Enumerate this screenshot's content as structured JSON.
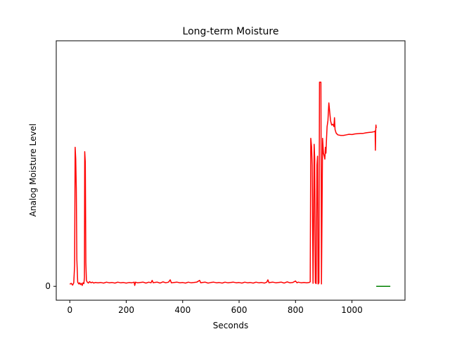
{
  "chart_data": {
    "type": "line",
    "title": "Long-term Moisture",
    "xlabel": "Seconds",
    "ylabel": "Analog Moisture Level",
    "xlim": [
      -48,
      1188
    ],
    "ylim": [
      -47,
      830
    ],
    "x_ticks": [
      0,
      200,
      400,
      600,
      800,
      1000
    ],
    "y_ticks": [
      0
    ],
    "grid": false,
    "legend": "none",
    "series": [
      {
        "color": "#ff0000",
        "points": [
          [
            0,
            7
          ],
          [
            5,
            10
          ],
          [
            10,
            4
          ],
          [
            14,
            12
          ],
          [
            17,
            70
          ],
          [
            19,
            470
          ],
          [
            21,
            430
          ],
          [
            23,
            330
          ],
          [
            25,
            90
          ],
          [
            28,
            14
          ],
          [
            32,
            8
          ],
          [
            35,
            12
          ],
          [
            38,
            6
          ],
          [
            41,
            10
          ],
          [
            44,
            3
          ],
          [
            47,
            12
          ],
          [
            50,
            9
          ],
          [
            52,
            30
          ],
          [
            53,
            455
          ],
          [
            55,
            420
          ],
          [
            57,
            80
          ],
          [
            59,
            20
          ],
          [
            62,
            14
          ],
          [
            66,
            11
          ],
          [
            70,
            16
          ],
          [
            75,
            12
          ],
          [
            80,
            14
          ],
          [
            85,
            11
          ],
          [
            90,
            13
          ],
          [
            100,
            12
          ],
          [
            110,
            13
          ],
          [
            120,
            11
          ],
          [
            130,
            14
          ],
          [
            140,
            12
          ],
          [
            150,
            13
          ],
          [
            160,
            11
          ],
          [
            170,
            14
          ],
          [
            180,
            12
          ],
          [
            190,
            13
          ],
          [
            200,
            11
          ],
          [
            210,
            13
          ],
          [
            220,
            12
          ],
          [
            228,
            14
          ],
          [
            230,
            3
          ],
          [
            233,
            14
          ],
          [
            240,
            12
          ],
          [
            250,
            13
          ],
          [
            260,
            14
          ],
          [
            270,
            11
          ],
          [
            280,
            14
          ],
          [
            288,
            12
          ],
          [
            292,
            20
          ],
          [
            296,
            12
          ],
          [
            300,
            13
          ],
          [
            310,
            14
          ],
          [
            320,
            11
          ],
          [
            330,
            15
          ],
          [
            340,
            12
          ],
          [
            350,
            14
          ],
          [
            356,
            22
          ],
          [
            360,
            12
          ],
          [
            370,
            13
          ],
          [
            380,
            14
          ],
          [
            390,
            12
          ],
          [
            400,
            13
          ],
          [
            410,
            11
          ],
          [
            420,
            14
          ],
          [
            430,
            12
          ],
          [
            440,
            13
          ],
          [
            450,
            14
          ],
          [
            460,
            20
          ],
          [
            464,
            12
          ],
          [
            470,
            13
          ],
          [
            480,
            14
          ],
          [
            490,
            11
          ],
          [
            500,
            13
          ],
          [
            510,
            14
          ],
          [
            520,
            12
          ],
          [
            530,
            13
          ],
          [
            540,
            11
          ],
          [
            550,
            14
          ],
          [
            560,
            12
          ],
          [
            570,
            13
          ],
          [
            580,
            14
          ],
          [
            590,
            12
          ],
          [
            600,
            13
          ],
          [
            610,
            11
          ],
          [
            620,
            14
          ],
          [
            630,
            12
          ],
          [
            640,
            13
          ],
          [
            650,
            11
          ],
          [
            660,
            14
          ],
          [
            670,
            12
          ],
          [
            680,
            13
          ],
          [
            690,
            11
          ],
          [
            698,
            14
          ],
          [
            702,
            22
          ],
          [
            706,
            12
          ],
          [
            710,
            13
          ],
          [
            720,
            14
          ],
          [
            730,
            12
          ],
          [
            740,
            13
          ],
          [
            750,
            14
          ],
          [
            760,
            11
          ],
          [
            770,
            15
          ],
          [
            780,
            12
          ],
          [
            790,
            13
          ],
          [
            800,
            18
          ],
          [
            805,
            12
          ],
          [
            810,
            14
          ],
          [
            820,
            12
          ],
          [
            830,
            13
          ],
          [
            840,
            12
          ],
          [
            848,
            13
          ],
          [
            852,
            15
          ],
          [
            854,
            500
          ],
          [
            857,
            470
          ],
          [
            859,
            410
          ],
          [
            862,
            10
          ],
          [
            864,
            200
          ],
          [
            866,
            480
          ],
          [
            868,
            430
          ],
          [
            870,
            12
          ],
          [
            873,
            9
          ],
          [
            876,
            410
          ],
          [
            878,
            440
          ],
          [
            880,
            8
          ],
          [
            883,
            12
          ],
          [
            885,
            690
          ],
          [
            888,
            690
          ],
          [
            890,
            690
          ],
          [
            892,
            8
          ],
          [
            896,
            500
          ],
          [
            899,
            450
          ],
          [
            902,
            440
          ],
          [
            904,
            430
          ],
          [
            906,
            470
          ],
          [
            908,
            450
          ],
          [
            910,
            500
          ],
          [
            912,
            540
          ],
          [
            915,
            560
          ],
          [
            918,
            620
          ],
          [
            920,
            600
          ],
          [
            924,
            560
          ],
          [
            928,
            545
          ],
          [
            932,
            548
          ],
          [
            936,
            540
          ],
          [
            938,
            570
          ],
          [
            940,
            530
          ],
          [
            944,
            518
          ],
          [
            950,
            512
          ],
          [
            960,
            510
          ],
          [
            970,
            510
          ],
          [
            980,
            512
          ],
          [
            990,
            514
          ],
          [
            1000,
            513
          ],
          [
            1010,
            515
          ],
          [
            1020,
            516
          ],
          [
            1030,
            517
          ],
          [
            1040,
            517
          ],
          [
            1050,
            519
          ],
          [
            1060,
            520
          ],
          [
            1070,
            521
          ],
          [
            1080,
            523
          ],
          [
            1082,
            525
          ],
          [
            1083,
            460
          ],
          [
            1084,
            525
          ],
          [
            1085,
            545
          ],
          [
            1086,
            535
          ]
        ]
      },
      {
        "color": "#008000",
        "points": [
          [
            1086,
            0
          ],
          [
            1136,
            0
          ]
        ]
      }
    ]
  }
}
